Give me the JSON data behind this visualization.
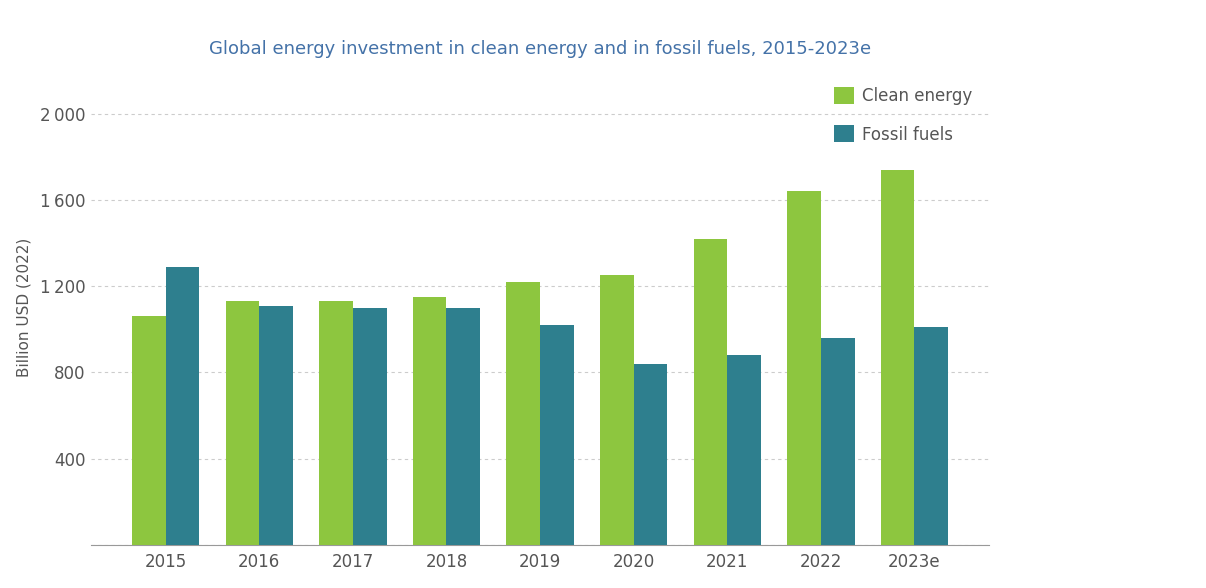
{
  "title": "Global energy investment in clean energy and in fossil fuels, 2015-2023e",
  "ylabel": "Billion USD (2022)",
  "categories": [
    "2015",
    "2016",
    "2017",
    "2018",
    "2019",
    "2020",
    "2021",
    "2022",
    "2023e"
  ],
  "clean_energy": [
    1060,
    1130,
    1130,
    1150,
    1220,
    1250,
    1420,
    1640,
    1740
  ],
  "fossil_fuels": [
    1290,
    1110,
    1100,
    1100,
    1020,
    840,
    880,
    960,
    1010
  ],
  "clean_color": "#8dc63f",
  "fossil_color": "#2e7f8e",
  "background_color": "#ffffff",
  "ylim": [
    0,
    2200
  ],
  "yticks": [
    0,
    400,
    800,
    1200,
    1600,
    2000
  ],
  "ytick_labels": [
    "",
    "400",
    "800",
    "1 200",
    "1 600",
    "2 000"
  ],
  "legend_clean": "Clean energy",
  "legend_fossil": "Fossil fuels",
  "title_color": "#4472a8",
  "ylabel_color": "#555555",
  "tick_color": "#555555",
  "grid_color": "#cccccc",
  "spine_color": "#999999"
}
